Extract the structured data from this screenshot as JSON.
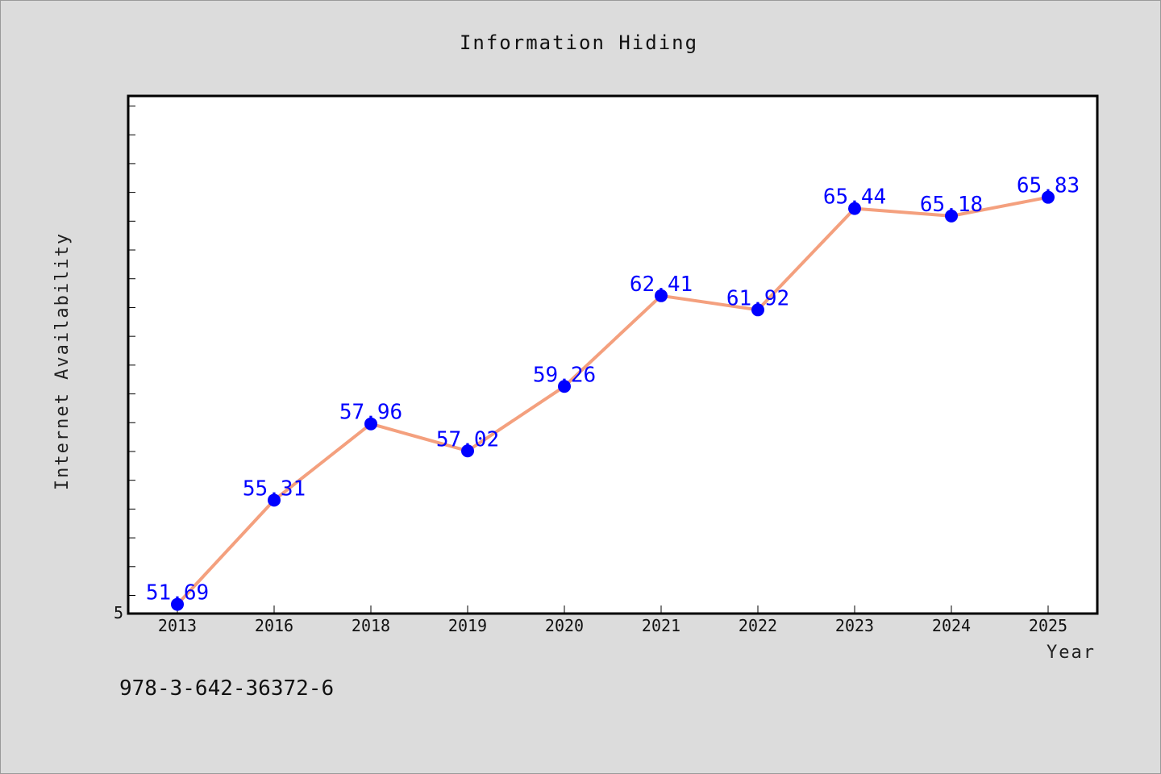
{
  "chart_data": {
    "type": "line",
    "title": "Information Hiding",
    "xlabel": "Year",
    "ylabel": "Internet Availability",
    "categories": [
      "2013",
      "2016",
      "2018",
      "2019",
      "2020",
      "2021",
      "2022",
      "2023",
      "2024",
      "2025"
    ],
    "series": [
      {
        "values": [
          51.69,
          55.31,
          57.96,
          57.02,
          59.26,
          62.41,
          61.92,
          65.44,
          65.18,
          65.83
        ],
        "line_color": "#f4a07e",
        "marker_color": "#0000ff"
      }
    ],
    "data_labels": [
      "51.69",
      "55.31",
      "57.96",
      "57.02",
      "59.26",
      "62.41",
      "61.92",
      "65.44",
      "65.18",
      "65.83"
    ],
    "y_tick_labels": [
      "5"
    ],
    "ylim": [
      51.37,
      69.35
    ],
    "y_minor_step": 1,
    "grid": false,
    "legend": "none"
  },
  "footer": {
    "text": "978-3-642-36372-6"
  }
}
